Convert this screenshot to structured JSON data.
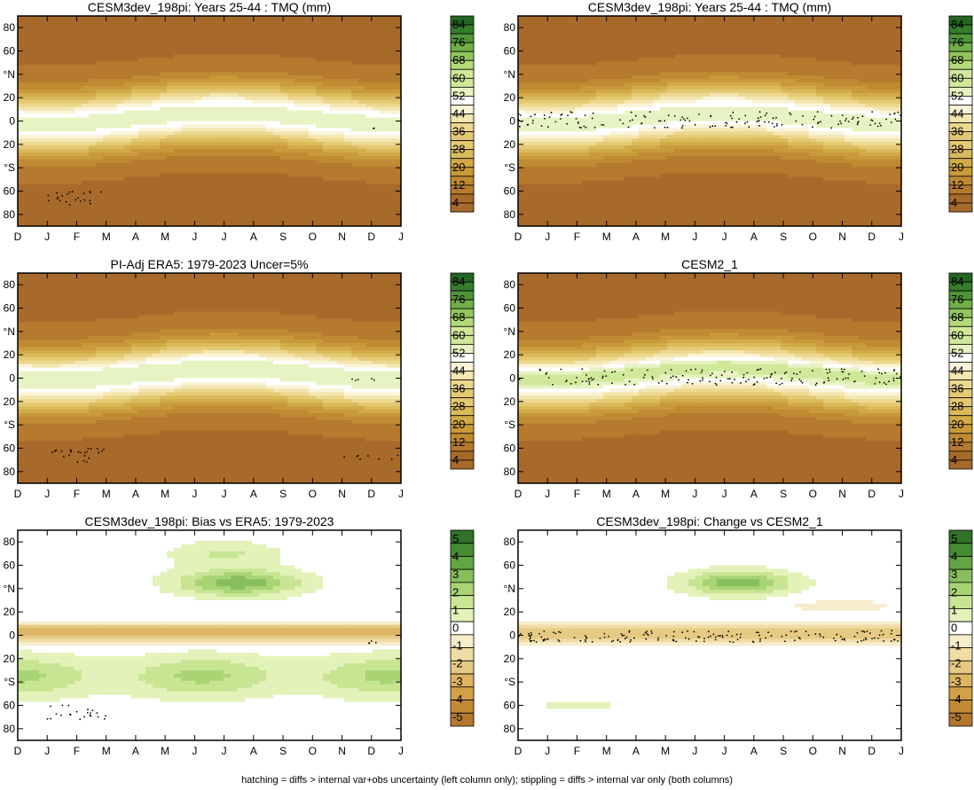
{
  "footer": "hatching = diffs > internal var+obs uncertainty (left column only); stippling = diffs > internal var only (both columns)",
  "months": [
    "D",
    "J",
    "F",
    "M",
    "A",
    "M",
    "J",
    "J",
    "A",
    "S",
    "O",
    "N",
    "D",
    "J"
  ],
  "lat_ticks": [
    "80",
    "60",
    "°N",
    "20",
    "0",
    "20",
    "°S",
    "60",
    "80"
  ],
  "colors": {
    "tmq_scale": [
      "#a86a2a",
      "#b57a2e",
      "#c08a33",
      "#c99a3a",
      "#d2aa48",
      "#dbba5c",
      "#e4c973",
      "#ecd88e",
      "#f3e6b0",
      "#faf3d7",
      "#ffffff",
      "#e7f3c2",
      "#cfe89a",
      "#b3da78",
      "#92c65c",
      "#6fae48",
      "#4f9538",
      "#357c2c",
      "#236622"
    ],
    "diff_scale": [
      "#b4782c",
      "#c38a36",
      "#d1a048",
      "#dcb462",
      "#e6c982",
      "#efdda5",
      "#f7eccb",
      "#ffffff",
      "#e3f2b8",
      "#c8e594",
      "#a8d474",
      "#86bf5b",
      "#63a544",
      "#458b34",
      "#2f7228"
    ]
  },
  "charts": [
    {
      "id": "tl",
      "title": "CESM3dev_198pi: Years 25-44 : TMQ (mm)",
      "kind": "tmq",
      "variant": "model",
      "bar_labels": [
        "84",
        "76",
        "68",
        "60",
        "52",
        "44",
        "36",
        "28",
        "20",
        "12",
        "4"
      ]
    },
    {
      "id": "tr",
      "title": "CESM3dev_198pi: Years 25-44 : TMQ (mm)",
      "kind": "tmq",
      "variant": "model_stipple",
      "bar_labels": [
        "84",
        "76",
        "68",
        "60",
        "52",
        "44",
        "36",
        "28",
        "20",
        "12",
        "4"
      ]
    },
    {
      "id": "ml",
      "title": "PI-Adj ERA5: 1979-2023 Uncer=5%",
      "kind": "tmq",
      "variant": "obs",
      "bar_labels": [
        "84",
        "76",
        "68",
        "60",
        "52",
        "44",
        "36",
        "28",
        "20",
        "12",
        "4"
      ]
    },
    {
      "id": "mr",
      "title": "CESM2_1",
      "kind": "tmq",
      "variant": "cesm2",
      "bar_labels": [
        "84",
        "76",
        "68",
        "60",
        "52",
        "44",
        "36",
        "28",
        "20",
        "12",
        "4"
      ]
    },
    {
      "id": "bl",
      "title": "CESM3dev_198pi: Bias vs ERA5: 1979-2023",
      "kind": "diff",
      "variant": "bias",
      "bar_labels": [
        "5",
        "4",
        "3",
        "2",
        "1",
        "0",
        "-1",
        "-2",
        "-3",
        "-4",
        "-5"
      ]
    },
    {
      "id": "br",
      "title": "CESM3dev_198pi: Change vs CESM2_1",
      "kind": "diff",
      "variant": "change",
      "bar_labels": [
        "5",
        "4",
        "3",
        "2",
        "1",
        "0",
        "-1",
        "-2",
        "-3",
        "-4",
        "-5"
      ]
    }
  ],
  "chart_data": [
    {
      "type": "heatmap",
      "title": "CESM3dev_198pi: Years 25-44 : TMQ (mm)",
      "x_categories": [
        "D",
        "J",
        "F",
        "M",
        "A",
        "M",
        "J",
        "J",
        "A",
        "S",
        "O",
        "N",
        "D",
        "J"
      ],
      "y_ticks": [
        "80",
        "60",
        "°N",
        "20",
        "0",
        "20",
        "°S",
        "60",
        "80"
      ],
      "colorbar": [
        84,
        76,
        68,
        60,
        52,
        44,
        36,
        28,
        20,
        12,
        4
      ]
    },
    {
      "type": "heatmap",
      "title": "CESM3dev_198pi: Years 25-44 : TMQ (mm)",
      "x_categories": [
        "D",
        "J",
        "F",
        "M",
        "A",
        "M",
        "J",
        "J",
        "A",
        "S",
        "O",
        "N",
        "D",
        "J"
      ],
      "y_ticks": [
        "80",
        "60",
        "°N",
        "20",
        "0",
        "20",
        "°S",
        "60",
        "80"
      ],
      "colorbar": [
        84,
        76,
        68,
        60,
        52,
        44,
        36,
        28,
        20,
        12,
        4
      ]
    },
    {
      "type": "heatmap",
      "title": "PI-Adj ERA5: 1979-2023 Uncer=5%",
      "x_categories": [
        "D",
        "J",
        "F",
        "M",
        "A",
        "M",
        "J",
        "J",
        "A",
        "S",
        "O",
        "N",
        "D",
        "J"
      ],
      "y_ticks": [
        "80",
        "60",
        "°N",
        "20",
        "0",
        "20",
        "°S",
        "60",
        "80"
      ],
      "colorbar": [
        84,
        76,
        68,
        60,
        52,
        44,
        36,
        28,
        20,
        12,
        4
      ]
    },
    {
      "type": "heatmap",
      "title": "CESM2_1",
      "x_categories": [
        "D",
        "J",
        "F",
        "M",
        "A",
        "M",
        "J",
        "J",
        "A",
        "S",
        "O",
        "N",
        "D",
        "J"
      ],
      "y_ticks": [
        "80",
        "60",
        "°N",
        "20",
        "0",
        "20",
        "°S",
        "60",
        "80"
      ],
      "colorbar": [
        84,
        76,
        68,
        60,
        52,
        44,
        36,
        28,
        20,
        12,
        4
      ]
    },
    {
      "type": "heatmap",
      "title": "CESM3dev_198pi: Bias vs ERA5: 1979-2023",
      "x_categories": [
        "D",
        "J",
        "F",
        "M",
        "A",
        "M",
        "J",
        "J",
        "A",
        "S",
        "O",
        "N",
        "D",
        "J"
      ],
      "y_ticks": [
        "80",
        "60",
        "°N",
        "20",
        "0",
        "20",
        "°S",
        "60",
        "80"
      ],
      "colorbar": [
        5,
        4,
        3,
        2,
        1,
        0,
        -1,
        -2,
        -3,
        -4,
        -5
      ]
    },
    {
      "type": "heatmap",
      "title": "CESM3dev_198pi: Change vs CESM2_1",
      "x_categories": [
        "D",
        "J",
        "F",
        "M",
        "A",
        "M",
        "J",
        "J",
        "A",
        "S",
        "O",
        "N",
        "D",
        "J"
      ],
      "y_ticks": [
        "80",
        "60",
        "°N",
        "20",
        "0",
        "20",
        "°S",
        "60",
        "80"
      ],
      "colorbar": [
        5,
        4,
        3,
        2,
        1,
        0,
        -1,
        -2,
        -3,
        -4,
        -5
      ]
    }
  ]
}
